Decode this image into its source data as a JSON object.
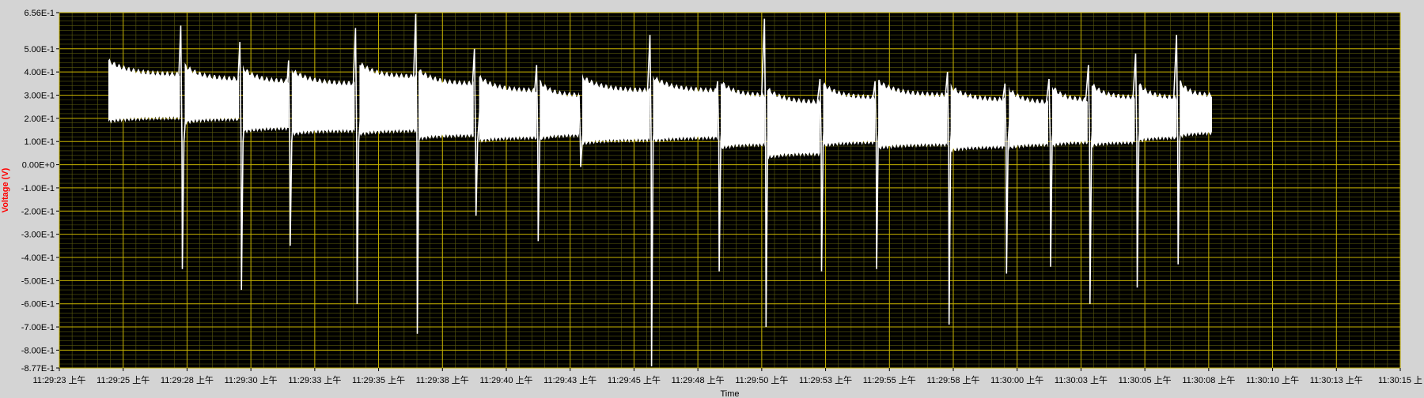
{
  "chart_data": {
    "type": "line",
    "title": "",
    "xlabel": "Time",
    "ylabel": "Voltage (V)",
    "ylim": [
      -0.877,
      0.656
    ],
    "y_ticks": [
      {
        "value": 0.656,
        "label": "6.56E-1"
      },
      {
        "value": 0.5,
        "label": "5.00E-1"
      },
      {
        "value": 0.4,
        "label": "4.00E-1"
      },
      {
        "value": 0.3,
        "label": "3.00E-1"
      },
      {
        "value": 0.2,
        "label": "2.00E-1"
      },
      {
        "value": 0.1,
        "label": "1.00E-1"
      },
      {
        "value": 0.0,
        "label": "0.00E+0"
      },
      {
        "value": -0.1,
        "label": "-1.00E-1"
      },
      {
        "value": -0.2,
        "label": "-2.00E-1"
      },
      {
        "value": -0.3,
        "label": "-3.00E-1"
      },
      {
        "value": -0.4,
        "label": "-4.00E-1"
      },
      {
        "value": -0.5,
        "label": "-5.00E-1"
      },
      {
        "value": -0.6,
        "label": "-6.00E-1"
      },
      {
        "value": -0.7,
        "label": "-7.00E-1"
      },
      {
        "value": -0.8,
        "label": "-8.00E-1"
      },
      {
        "value": -0.877,
        "label": "-8.77E-1"
      }
    ],
    "x_ticks": [
      "11:29:23 上午",
      "11:29:25 上午",
      "11:29:28 上午",
      "11:29:30 上午",
      "11:29:33 上午",
      "11:29:35 上午",
      "11:29:38 上午",
      "11:29:40 上午",
      "11:29:43 上午",
      "11:29:45 上午",
      "11:29:48 上午",
      "11:29:50 上午",
      "11:29:53 上午",
      "11:29:55 上午",
      "11:29:58 上午",
      "11:30:00 上午",
      "11:30:03 上午",
      "11:30:05 上午",
      "11:30:08 上午",
      "11:30:10 上午",
      "11:30:13 上午",
      "11:30:15 上"
    ],
    "grid": true,
    "colors": {
      "plot_background": "#000000",
      "grid_major": "#c8b400",
      "grid_minor": "#5a5a0e",
      "trace": "#ffffff",
      "ylabel": "#ff0000",
      "frame_background": "#d4d4d4"
    },
    "series": [
      {
        "segments": [
          {
            "x_start": 1.6,
            "x_end": 10.7,
            "low": 0.185,
            "high": 0.39
          },
          {
            "x_start": 11.3,
            "x_end": 18.2,
            "low": 0.18,
            "high": 0.37
          },
          {
            "x_start": 18.7,
            "x_end": 24.5,
            "low": 0.14,
            "high": 0.36
          },
          {
            "x_start": 24.9,
            "x_end": 32.9,
            "low": 0.13,
            "high": 0.35
          },
          {
            "x_start": 33.5,
            "x_end": 40.7,
            "low": 0.13,
            "high": 0.38
          },
          {
            "x_start": 41.0,
            "x_end": 48.0,
            "low": 0.11,
            "high": 0.35
          },
          {
            "x_start": 48.7,
            "x_end": 56.0,
            "low": 0.1,
            "high": 0.32
          },
          {
            "x_start": 56.4,
            "x_end": 61.4,
            "low": 0.11,
            "high": 0.3
          },
          {
            "x_start": 61.8,
            "x_end": 70.4,
            "low": 0.09,
            "high": 0.32
          },
          {
            "x_start": 70.8,
            "x_end": 79.0,
            "low": 0.1,
            "high": 0.32
          },
          {
            "x_start": 79.4,
            "x_end": 85.0,
            "low": 0.07,
            "high": 0.3
          },
          {
            "x_start": 85.3,
            "x_end": 92.0,
            "low": 0.03,
            "high": 0.27
          },
          {
            "x_start": 92.4,
            "x_end": 99.0,
            "low": 0.08,
            "high": 0.29
          },
          {
            "x_start": 99.4,
            "x_end": 108.2,
            "low": 0.07,
            "high": 0.3
          },
          {
            "x_start": 108.6,
            "x_end": 115.5,
            "low": 0.06,
            "high": 0.28
          },
          {
            "x_start": 116.0,
            "x_end": 121.0,
            "low": 0.07,
            "high": 0.27
          },
          {
            "x_start": 121.5,
            "x_end": 126.0,
            "low": 0.08,
            "high": 0.28
          },
          {
            "x_start": 126.5,
            "x_end": 132.0,
            "low": 0.08,
            "high": 0.29
          },
          {
            "x_start": 132.5,
            "x_end": 137.3,
            "low": 0.1,
            "high": 0.29
          },
          {
            "x_start": 137.7,
            "x_end": 141.8,
            "low": 0.12,
            "high": 0.3
          }
        ],
        "spikes": [
          {
            "x": 11.0,
            "peak": 0.6,
            "trough": -0.45
          },
          {
            "x": 18.5,
            "peak": 0.53,
            "trough": -0.54
          },
          {
            "x": 24.7,
            "peak": 0.45,
            "trough": -0.35
          },
          {
            "x": 33.2,
            "peak": 0.59,
            "trough": -0.6
          },
          {
            "x": 40.85,
            "peak": 0.65,
            "trough": -0.73
          },
          {
            "x": 48.3,
            "peak": 0.5,
            "trough": -0.22
          },
          {
            "x": 56.2,
            "peak": 0.43,
            "trough": -0.33
          },
          {
            "x": 61.6,
            "peak": 0.3,
            "trough": -0.01
          },
          {
            "x": 70.6,
            "peak": 0.56,
            "trough": -0.87
          },
          {
            "x": 79.2,
            "peak": 0.36,
            "trough": -0.46
          },
          {
            "x": 85.15,
            "peak": 0.63,
            "trough": -0.7
          },
          {
            "x": 92.2,
            "peak": 0.37,
            "trough": -0.46
          },
          {
            "x": 99.2,
            "peak": 0.36,
            "trough": -0.45
          },
          {
            "x": 108.4,
            "peak": 0.4,
            "trough": -0.69
          },
          {
            "x": 115.7,
            "peak": 0.35,
            "trough": -0.47
          },
          {
            "x": 121.3,
            "peak": 0.37,
            "trough": -0.44
          },
          {
            "x": 126.3,
            "peak": 0.43,
            "trough": -0.6
          },
          {
            "x": 132.3,
            "peak": 0.48,
            "trough": -0.53
          },
          {
            "x": 137.5,
            "peak": 0.56,
            "trough": -0.43
          }
        ]
      }
    ]
  }
}
